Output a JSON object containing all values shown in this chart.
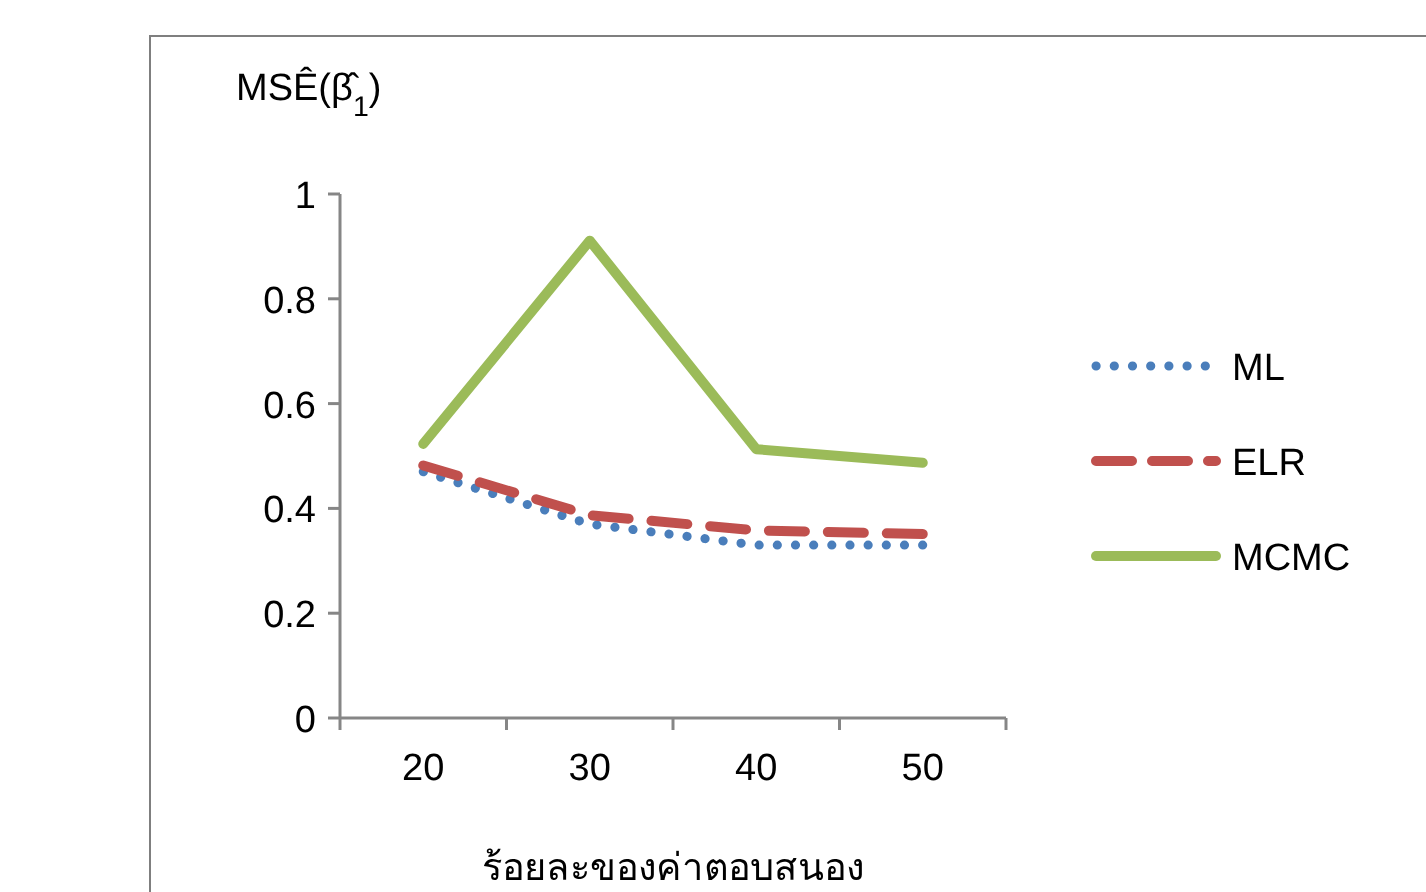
{
  "chart_data": {
    "type": "line",
    "ylabel": "MSÊ(β̂$_{1}$)",
    "xlabel": "ร้อยละของค่าตอบสนอง",
    "categories": [
      "20",
      "30",
      "40",
      "50"
    ],
    "ylim": [
      0,
      1
    ],
    "yticks": [
      0,
      0.2,
      0.4,
      0.6,
      0.8,
      1
    ],
    "legend": "right",
    "grid": false,
    "series": [
      {
        "name": "ML",
        "color": "#4a7ebb",
        "line_style": "dotted",
        "values": [
          0.47,
          0.37,
          0.33,
          0.33
        ]
      },
      {
        "name": "ELR",
        "color": "#c0504d",
        "line_style": "dashed",
        "values": [
          0.482,
          0.387,
          0.358,
          0.351
        ]
      },
      {
        "name": "MCMC",
        "color": "#9bbb59",
        "line_style": "solid",
        "values": [
          0.523,
          0.911,
          0.513,
          0.487
        ]
      }
    ]
  }
}
